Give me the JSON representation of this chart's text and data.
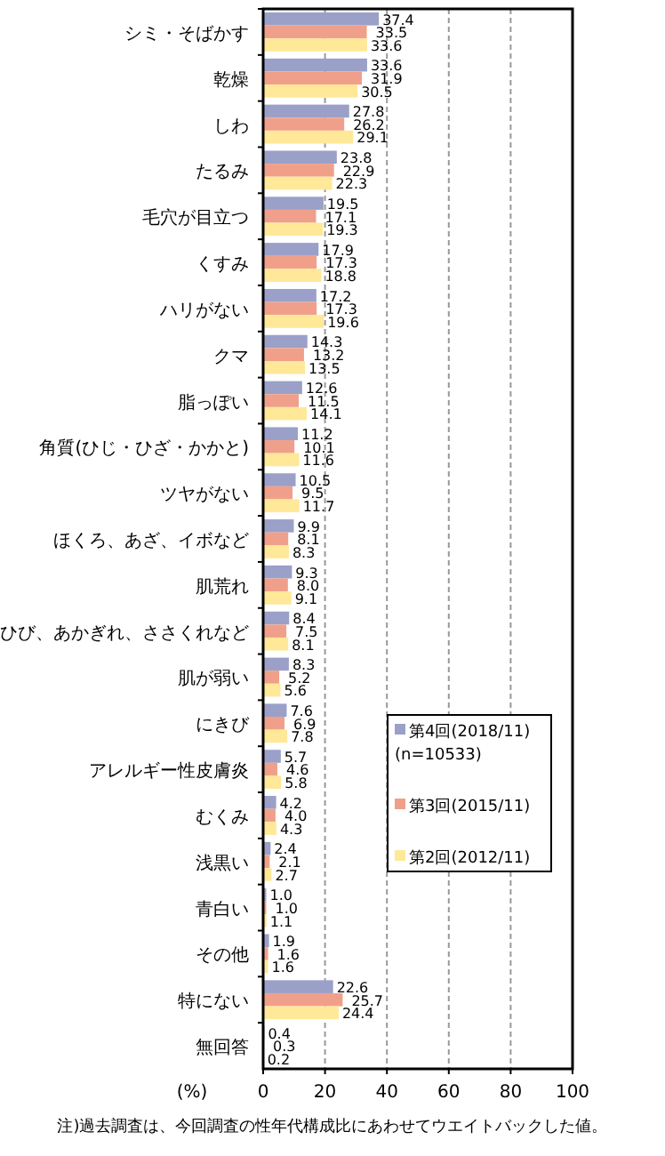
{
  "chart_data": {
    "type": "bar",
    "orientation": "horizontal",
    "xlabel": "(%)",
    "categories": [
      "シミ・そばかす",
      "乾燥",
      "しわ",
      "たるみ",
      "毛穴が目立つ",
      "くすみ",
      "ハリがない",
      "クマ",
      "脂っぽい",
      "角質(ひじ・ひざ・かかと)",
      "ツヤがない",
      "ほくろ、あざ、イボなど",
      "肌荒れ",
      "ひび、あかぎれ、ささくれなど",
      "肌が弱い",
      "にきび",
      "アレルギー性皮膚炎",
      "むくみ",
      "浅黒い",
      "青白い",
      "その他",
      "特にない",
      "無回答"
    ],
    "series": [
      {
        "name": "第4回(2018/11)\n(n=10533)",
        "color": "#9aa0c8",
        "values": [
          37.4,
          33.6,
          27.8,
          23.8,
          19.5,
          17.9,
          17.2,
          14.3,
          12.6,
          11.2,
          10.5,
          9.9,
          9.3,
          8.4,
          8.3,
          7.6,
          5.7,
          4.2,
          2.4,
          1.0,
          1.9,
          22.6,
          0.4
        ],
        "value_labels": [
          "37.4",
          "33.6",
          "27.8",
          "23.8",
          "19.5",
          "17.9",
          "17.2",
          "14.3",
          "12.6",
          "11.2",
          "10.5",
          "9.9",
          "9.3",
          "8.4",
          "8.3",
          "7.6",
          "5.7",
          "4.2",
          "2.4",
          "1.0",
          "1.9",
          "22.6",
          "0.4"
        ]
      },
      {
        "name": "第3回(2015/11)",
        "color": "#f0a08a",
        "values": [
          33.5,
          31.9,
          26.2,
          22.9,
          17.1,
          17.3,
          17.3,
          13.2,
          11.5,
          10.1,
          9.5,
          8.1,
          8.0,
          7.5,
          5.2,
          6.9,
          4.6,
          4.0,
          2.1,
          1.0,
          1.6,
          25.7,
          0.3
        ],
        "value_labels": [
          "33.5",
          "31.9",
          "26.2",
          "22.9",
          "17.1",
          "17.3",
          "17.3",
          "13.2",
          "11.5",
          "10.1",
          "9.5",
          "8.1",
          "8.0",
          "7.5",
          "5.2",
          "6.9",
          "4.6",
          "4.0",
          "2.1",
          "1.0",
          "1.6",
          "25.7",
          "0.3"
        ]
      },
      {
        "name": "第2回(2012/11)",
        "color": "#ffe898",
        "values": [
          33.6,
          30.5,
          29.1,
          22.3,
          19.3,
          18.8,
          19.6,
          13.5,
          14.1,
          11.6,
          11.7,
          8.3,
          9.1,
          8.1,
          5.6,
          7.8,
          5.8,
          4.3,
          2.7,
          1.1,
          1.6,
          24.4,
          0.2
        ],
        "value_labels": [
          "33.6",
          "30.5",
          "29.1",
          "22.3",
          "19.3",
          "18.8",
          "19.6",
          "13.5",
          "14.1",
          "11.6",
          "11.7",
          "8.3",
          "9.1",
          "8.1",
          "5.6",
          "7.8",
          "5.8",
          "4.3",
          "2.7",
          "1.1",
          "1.6",
          "24.4",
          "0.2"
        ]
      }
    ],
    "xlim": [
      0,
      100
    ],
    "xticks": [
      0,
      20,
      40,
      60,
      80,
      100
    ],
    "grid": "x",
    "legend": "bottom right",
    "annotations": [
      "注)過去調査は、今回調査の性年代構成比にあわせてウエイトバックした値。"
    ]
  }
}
